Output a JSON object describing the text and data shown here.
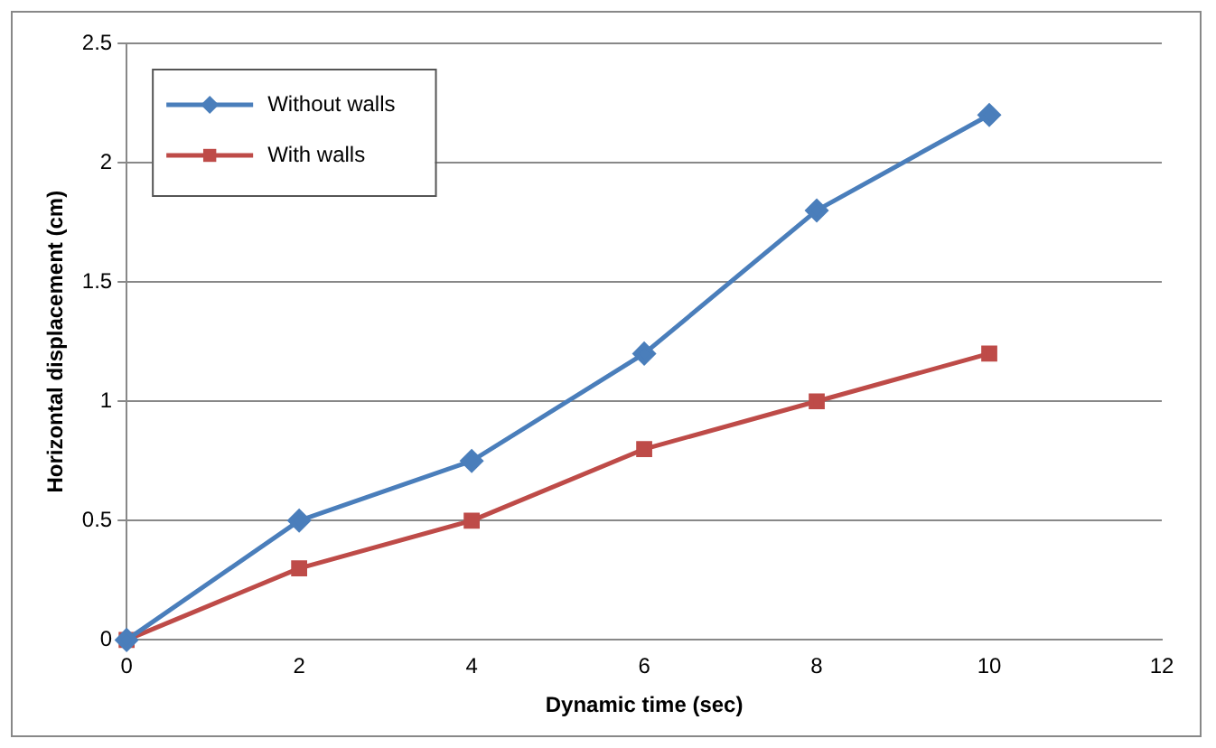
{
  "chart_data": {
    "type": "line",
    "xlabel": "Dynamic time (sec)",
    "ylabel": "Horizontal displacement (cm)",
    "x": [
      0,
      2,
      4,
      6,
      8,
      10
    ],
    "series": [
      {
        "name": "Without walls",
        "color": "#4a7ebb",
        "marker": "diamond",
        "values": [
          0,
          0.5,
          0.75,
          1.2,
          1.8,
          2.2
        ]
      },
      {
        "name": "With walls",
        "color": "#be4b48",
        "marker": "square",
        "values": [
          0,
          0.3,
          0.5,
          0.8,
          1.0,
          1.2
        ]
      }
    ],
    "xlim": [
      0,
      12
    ],
    "xticks": [
      0,
      2,
      4,
      6,
      8,
      10,
      12
    ],
    "ylim": [
      0,
      2.5
    ],
    "yticks": [
      0,
      0.5,
      1,
      1.5,
      2,
      2.5
    ],
    "grid": "y",
    "legend": "top left"
  }
}
